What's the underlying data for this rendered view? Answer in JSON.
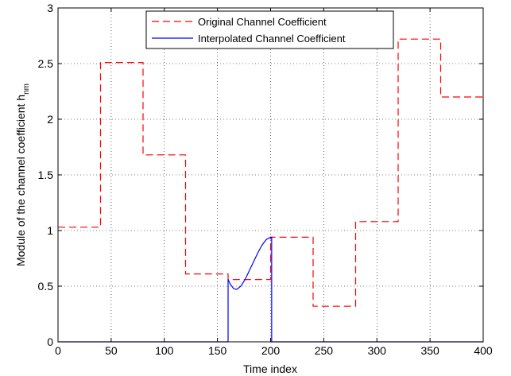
{
  "chart_data": {
    "type": "line",
    "xlabel": "Time index",
    "ylabel_main": "Module of the channel coefficient h",
    "ylabel_sub": "nm",
    "xlim": [
      0,
      400
    ],
    "ylim": [
      0,
      3
    ],
    "xticks": [
      0,
      50,
      100,
      150,
      200,
      250,
      300,
      350,
      400
    ],
    "yticks": [
      0,
      0.5,
      1,
      1.5,
      2,
      2.5,
      3
    ],
    "xtick_labels": [
      "0",
      "50",
      "100",
      "150",
      "200",
      "250",
      "300",
      "350",
      "400"
    ],
    "ytick_labels": [
      "0",
      "0.5",
      "1",
      "1.5",
      "2",
      "2.5",
      "3"
    ],
    "grid": true,
    "legend_position": "top-center",
    "series": [
      {
        "name": "Original Channel Coefficient",
        "color": "#ff0000",
        "style": "dashed",
        "x": [
          0,
          40,
          40,
          80,
          80,
          120,
          120,
          160,
          160,
          200,
          200,
          240,
          240,
          280,
          280,
          320,
          320,
          360,
          360,
          400
        ],
        "y": [
          1.03,
          1.03,
          2.51,
          2.51,
          1.68,
          1.68,
          0.61,
          0.61,
          0.56,
          0.56,
          0.94,
          0.94,
          0.32,
          0.32,
          1.08,
          1.08,
          2.72,
          2.72,
          2.2,
          2.2
        ]
      },
      {
        "name": "Interpolated Channel Coefficient",
        "color": "#0000ff",
        "style": "solid",
        "x": [
          0,
          160,
          160.01,
          162,
          165,
          168,
          172,
          176,
          180,
          184,
          188,
          192,
          196,
          200,
          201,
          201.01,
          400
        ],
        "y": [
          0,
          0,
          0.56,
          0.52,
          0.48,
          0.47,
          0.5,
          0.56,
          0.64,
          0.72,
          0.8,
          0.87,
          0.92,
          0.94,
          0.94,
          0,
          0
        ]
      }
    ]
  }
}
